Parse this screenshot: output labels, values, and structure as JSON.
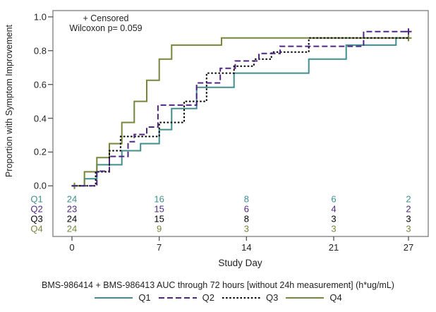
{
  "figure": {
    "annotation_line1": "+ Censored",
    "annotation_line2": "Wilcoxon p= 0.059",
    "footnote": "BMS-986414 + BMS-986413 AUC through 72 hours [without 24h measurement] (h*ug/mL)"
  },
  "colors": {
    "q1_teal": "#3E8F8E",
    "q2_purple": "#4F2683",
    "q3_black": "#000000",
    "q4_olive": "#76863A",
    "frame_gray": "#7d7d7d",
    "tick_gray": "#555555",
    "text": "#222222"
  },
  "chart_data": {
    "type": "line",
    "variant": "step-survival",
    "title": "",
    "xlabel": "Study Day",
    "ylabel": "Proportion with Symptom Improvement",
    "xlim": [
      0,
      27
    ],
    "ylim": [
      0.0,
      1.0
    ],
    "grid": false,
    "legend_position": "bottom",
    "xticks": [
      {
        "label": "0",
        "value": 0
      },
      {
        "label": "7",
        "value": 7
      },
      {
        "label": "14",
        "value": 14
      },
      {
        "label": "21",
        "value": 21
      },
      {
        "label": "27",
        "value": 27
      }
    ],
    "yticks": [
      {
        "label": "0.0",
        "value": 0.0
      },
      {
        "label": "0.2",
        "value": 0.2
      },
      {
        "label": "0.4",
        "value": 0.4
      },
      {
        "label": "0.6",
        "value": 0.6
      },
      {
        "label": "0.8",
        "value": 0.8
      },
      {
        "label": "1.0",
        "value": 1.0
      }
    ],
    "series": [
      {
        "name": "Q1",
        "color": "#3E8F8E",
        "line_style": "solid",
        "steps": [
          [
            0,
            0
          ],
          [
            1,
            0.042
          ],
          [
            2,
            0.125
          ],
          [
            4,
            0.208
          ],
          [
            5.5,
            0.25
          ],
          [
            7,
            0.333
          ],
          [
            8,
            0.458
          ],
          [
            10,
            0.583
          ],
          [
            13,
            0.667
          ],
          [
            19,
            0.75
          ],
          [
            22,
            0.833
          ],
          [
            26,
            0.875
          ],
          [
            27,
            0.875
          ]
        ],
        "censored": []
      },
      {
        "name": "Q2",
        "color": "#4F2683",
        "line_style": "dashed",
        "steps": [
          [
            0,
            0
          ],
          [
            2,
            0.087
          ],
          [
            3,
            0.174
          ],
          [
            4.5,
            0.261
          ],
          [
            5,
            0.304
          ],
          [
            6,
            0.348
          ],
          [
            6.9,
            0.478
          ],
          [
            10,
            0.609
          ],
          [
            11.9,
            0.696
          ],
          [
            13.1,
            0.739
          ],
          [
            15,
            0.783
          ],
          [
            16.7,
            0.826
          ],
          [
            23.4,
            0.913
          ],
          [
            27,
            0.913
          ]
        ],
        "censored": [
          [
            27,
            0.913
          ]
        ]
      },
      {
        "name": "Q3",
        "color": "#000000",
        "line_style": "dotted",
        "steps": [
          [
            0,
            0
          ],
          [
            1.9,
            0.083
          ],
          [
            3,
            0.208
          ],
          [
            3.9,
            0.292
          ],
          [
            7,
            0.375
          ],
          [
            9,
            0.5
          ],
          [
            10.8,
            0.667
          ],
          [
            13,
            0.708
          ],
          [
            14.6,
            0.75
          ],
          [
            16,
            0.792
          ],
          [
            19,
            0.875
          ],
          [
            27,
            0.875
          ]
        ],
        "censored": []
      },
      {
        "name": "Q4",
        "color": "#76863A",
        "line_style": "solid",
        "steps": [
          [
            0,
            0
          ],
          [
            1,
            0.083
          ],
          [
            2,
            0.167
          ],
          [
            3,
            0.25
          ],
          [
            4,
            0.375
          ],
          [
            5,
            0.5
          ],
          [
            6,
            0.625
          ],
          [
            7,
            0.75
          ],
          [
            8,
            0.833
          ],
          [
            12,
            0.875
          ],
          [
            27,
            0.875
          ]
        ],
        "censored": [
          [
            0.2,
            0
          ],
          [
            27,
            0.875
          ]
        ]
      }
    ],
    "risk_table": {
      "days": [
        0,
        7,
        14,
        21,
        27
      ],
      "rows": [
        {
          "label": "Q1",
          "color": "#3E8F8E",
          "values": [
            "24",
            "16",
            "8",
            "6",
            "2"
          ]
        },
        {
          "label": "Q2",
          "color": "#4F2683",
          "values": [
            "23",
            "15",
            "6",
            "4",
            "2"
          ]
        },
        {
          "label": "Q3",
          "color": "#000000",
          "values": [
            "24",
            "15",
            "8",
            "3",
            "3"
          ]
        },
        {
          "label": "Q4",
          "color": "#76863A",
          "values": [
            "24",
            "9",
            "3",
            "3",
            "3"
          ]
        }
      ]
    },
    "legend": [
      {
        "label": "Q1",
        "color": "#3E8F8E",
        "line_style": "solid"
      },
      {
        "label": "Q2",
        "color": "#4F2683",
        "line_style": "dashed"
      },
      {
        "label": "Q3",
        "color": "#000000",
        "line_style": "dotted"
      },
      {
        "label": "Q4",
        "color": "#76863A",
        "line_style": "solid"
      }
    ]
  }
}
